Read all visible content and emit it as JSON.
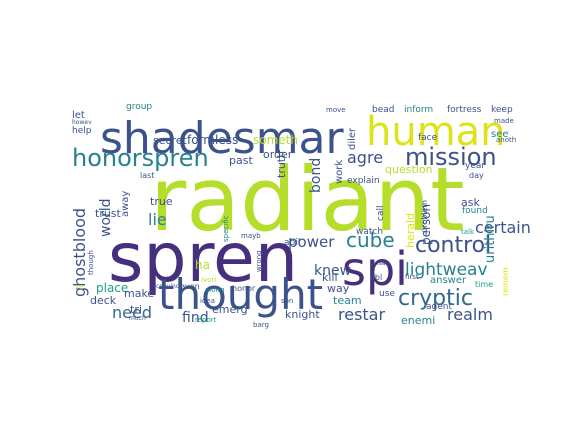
{
  "palette": {
    "dark_purple": "#46307e",
    "purple": "#482374",
    "indigo": "#3e4a89",
    "slate": "#3b528b",
    "blue": "#31688e",
    "teal": "#26828e",
    "teal_green": "#1f9e89",
    "green": "#35b779",
    "lime": "#90d743",
    "yellow_green": "#b5de2b",
    "yellow": "#dde318",
    "background": "#ffffff"
  },
  "words": [
    {
      "text": "radiant",
      "weight": 1.0,
      "color": "yellow_green"
    },
    {
      "text": "spren",
      "weight": 0.92,
      "color": "dark_purple"
    },
    {
      "text": "shadesmar",
      "weight": 0.62,
      "color": "slate"
    },
    {
      "text": "thought",
      "weight": 0.58,
      "color": "slate"
    },
    {
      "text": "human",
      "weight": 0.52,
      "color": "yellow"
    },
    {
      "text": "spi",
      "weight": 0.5,
      "color": "dark_purple"
    },
    {
      "text": "honorspren",
      "weight": 0.34,
      "color": "teal"
    },
    {
      "text": "mission",
      "weight": 0.33,
      "color": "slate"
    },
    {
      "text": "control",
      "weight": 0.28,
      "color": "slate"
    },
    {
      "text": "cryptic",
      "weight": 0.26,
      "color": "blue"
    },
    {
      "text": "cube",
      "weight": 0.24,
      "color": "teal"
    },
    {
      "text": "lightweav",
      "weight": 0.19,
      "color": "teal"
    },
    {
      "text": "certain",
      "weight": 0.19,
      "color": "slate"
    },
    {
      "text": "ghostblood",
      "weight": 0.2,
      "color": "slate"
    },
    {
      "text": "power",
      "weight": 0.17,
      "color": "slate"
    },
    {
      "text": "agre",
      "weight": 0.16,
      "color": "slate"
    },
    {
      "text": "need",
      "weight": 0.18,
      "color": "blue"
    },
    {
      "text": "restar",
      "weight": 0.18,
      "color": "slate"
    },
    {
      "text": "realm",
      "weight": 0.17,
      "color": "slate"
    },
    {
      "text": "world",
      "weight": 0.15,
      "color": "slate"
    },
    {
      "text": "lie",
      "weight": 0.15,
      "color": "teal"
    },
    {
      "text": "bond",
      "weight": 0.14,
      "color": "slate"
    },
    {
      "text": "knew",
      "weight": 0.14,
      "color": "slate"
    },
    {
      "text": "find",
      "weight": 0.14,
      "color": "slate"
    },
    {
      "text": "urithiru",
      "weight": 0.13,
      "color": "teal"
    },
    {
      "text": "formless",
      "weight": 0.11,
      "color": "slate"
    },
    {
      "text": "someth",
      "weight": 0.11,
      "color": "yellow_green"
    },
    {
      "text": "secret",
      "weight": 0.11,
      "color": "slate"
    },
    {
      "text": "past",
      "weight": 0.11,
      "color": "slate"
    },
    {
      "text": "order",
      "weight": 0.1,
      "color": "slate"
    },
    {
      "text": "truth",
      "weight": 0.1,
      "color": "slate"
    },
    {
      "text": "question",
      "weight": 0.11,
      "color": "yellow_green"
    },
    {
      "text": "person",
      "weight": 0.11,
      "color": "slate"
    },
    {
      "text": "herald",
      "weight": 0.1,
      "color": "yellow"
    },
    {
      "text": "ask",
      "weight": 0.1,
      "color": "slate"
    },
    {
      "text": "answer",
      "weight": 0.1,
      "color": "teal"
    },
    {
      "text": "trust",
      "weight": 0.1,
      "color": "slate"
    },
    {
      "text": "true",
      "weight": 0.1,
      "color": "slate"
    },
    {
      "text": "place",
      "weight": 0.11,
      "color": "teal_green"
    },
    {
      "text": "make",
      "weight": 0.1,
      "color": "slate"
    },
    {
      "text": "emerg",
      "weight": 0.1,
      "color": "slate"
    },
    {
      "text": "knight",
      "weight": 0.1,
      "color": "slate"
    },
    {
      "text": "team",
      "weight": 0.1,
      "color": "teal"
    },
    {
      "text": "way",
      "weight": 0.1,
      "color": "slate"
    },
    {
      "text": "kill",
      "weight": 0.1,
      "color": "slate"
    },
    {
      "text": "deck",
      "weight": 0.1,
      "color": "slate"
    },
    {
      "text": "tri",
      "weight": 0.1,
      "color": "slate"
    },
    {
      "text": "ha",
      "weight": 0.1,
      "color": "yellow_green"
    },
    {
      "text": "enemi",
      "weight": 0.1,
      "color": "teal"
    },
    {
      "text": "work",
      "weight": 0.09,
      "color": "slate"
    },
    {
      "text": "diler",
      "weight": 0.09,
      "color": "slate"
    },
    {
      "text": "away",
      "weight": 0.09,
      "color": "slate"
    },
    {
      "text": "let",
      "weight": 0.09,
      "color": "slate"
    },
    {
      "text": "see",
      "weight": 0.09,
      "color": "teal"
    },
    {
      "text": "keep",
      "weight": 0.07,
      "color": "slate"
    },
    {
      "text": "group",
      "weight": 0.07,
      "color": "teal"
    },
    {
      "text": "bead",
      "weight": 0.08,
      "color": "slate"
    },
    {
      "text": "inform",
      "weight": 0.07,
      "color": "teal"
    },
    {
      "text": "fortress",
      "weight": 0.07,
      "color": "slate"
    },
    {
      "text": "help",
      "weight": 0.07,
      "color": "slate"
    },
    {
      "text": "face",
      "weight": 0.07,
      "color": "slate"
    },
    {
      "text": "explain",
      "weight": 0.07,
      "color": "slate"
    },
    {
      "text": "watch",
      "weight": 0.07,
      "color": "slate"
    },
    {
      "text": "abil",
      "weight": 0.07,
      "color": "slate"
    },
    {
      "text": "call",
      "weight": 0.07,
      "color": "slate"
    },
    {
      "text": "last",
      "weight": 0.06,
      "color": "slate"
    },
    {
      "text": "even",
      "weight": 0.06,
      "color": "slate"
    },
    {
      "text": "along",
      "weight": 0.05,
      "color": "teal"
    },
    {
      "text": "honor",
      "weight": 0.06,
      "color": "slate"
    },
    {
      "text": "idea",
      "weight": 0.05,
      "color": "slate"
    },
    {
      "text": "report",
      "weight": 0.05,
      "color": "teal_green"
    },
    {
      "text": "much",
      "weight": 0.05,
      "color": "slate"
    },
    {
      "text": "barg",
      "weight": 0.05,
      "color": "slate"
    },
    {
      "text": "son",
      "weight": 0.05,
      "color": "slate"
    },
    {
      "text": "use",
      "weight": 0.06,
      "color": "slate"
    },
    {
      "text": "agent",
      "weight": 0.06,
      "color": "slate"
    },
    {
      "text": "first",
      "weight": 0.05,
      "color": "slate"
    },
    {
      "text": "remem",
      "weight": 0.05,
      "color": "yellow"
    },
    {
      "text": "found",
      "weight": 0.06,
      "color": "teal"
    },
    {
      "text": "time",
      "weight": 0.05,
      "color": "teal_green"
    },
    {
      "text": "year",
      "weight": 0.06,
      "color": "slate"
    },
    {
      "text": "day",
      "weight": 0.05,
      "color": "slate"
    },
    {
      "text": "made",
      "weight": 0.05,
      "color": "slate"
    },
    {
      "text": "anoth",
      "weight": 0.05,
      "color": "slate"
    },
    {
      "text": "move",
      "weight": 0.05,
      "color": "slate"
    },
    {
      "text": "problem",
      "weight": 0.05,
      "color": "slate"
    },
    {
      "text": "talk",
      "weight": 0.05,
      "color": "teal_green"
    },
    {
      "text": "mayb",
      "weight": 0.05,
      "color": "slate"
    },
    {
      "text": "wrong",
      "weight": 0.05,
      "color": "slate"
    },
    {
      "text": "specific",
      "weight": 0.05,
      "color": "teal"
    },
    {
      "text": "convinc",
      "weight": 0.04,
      "color": "slate"
    },
    {
      "text": "ivori",
      "weight": 0.05,
      "color": "yellow_green"
    },
    {
      "text": "though",
      "weight": 0.05,
      "color": "slate"
    },
    {
      "text": "howev",
      "weight": 0.04,
      "color": "slate"
    },
    {
      "text": "ye",
      "weight": 0.04,
      "color": "yellow"
    },
    {
      "text": "unsai",
      "weight": 0.04,
      "color": "slate"
    },
    {
      "text": "abl",
      "weight": 0.05,
      "color": "slate"
    }
  ]
}
